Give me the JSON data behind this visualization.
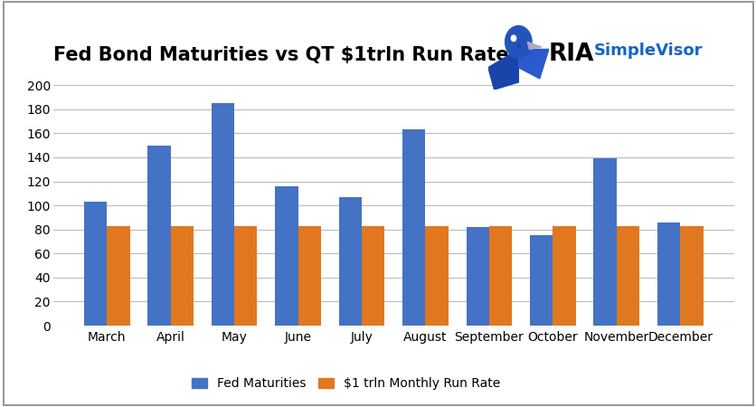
{
  "title": "Fed Bond Maturities vs QT $1trln Run Rate",
  "categories": [
    "March",
    "April",
    "May",
    "June",
    "July",
    "August",
    "September",
    "October",
    "November",
    "December"
  ],
  "fed_maturities": [
    103,
    150,
    185,
    116,
    107,
    163,
    82,
    75,
    139,
    86
  ],
  "qt_run_rate": [
    83,
    83,
    83,
    83,
    83,
    83,
    83,
    83,
    83,
    83
  ],
  "bar_color_blue": "#4472C4",
  "bar_color_orange": "#E07820",
  "ylim": [
    0,
    210
  ],
  "yticks": [
    0,
    20,
    40,
    60,
    80,
    100,
    120,
    140,
    160,
    180,
    200
  ],
  "legend_label_blue": "Fed Maturities",
  "legend_label_orange": "$1 trln Monthly Run Rate",
  "background_color": "#ffffff",
  "grid_color": "#bbbbbb",
  "bar_width": 0.36,
  "title_fontsize": 15,
  "tick_fontsize": 10,
  "legend_fontsize": 10,
  "ria_text": "RIA",
  "simplevisor_text": "SimpleVisor",
  "ria_color": "#000000",
  "simplevisor_color": "#1565C0",
  "border_color": "#999999"
}
